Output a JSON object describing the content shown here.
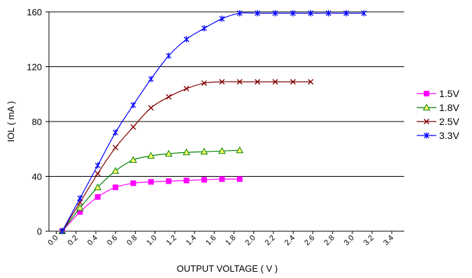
{
  "chart_data": {
    "type": "line",
    "title": "",
    "xlabel": "OUTPUT VOLTAGE ( V )",
    "ylabel": "IOL ( mA )",
    "xlim": [
      0,
      3.6
    ],
    "ylim": [
      0,
      160
    ],
    "x_ticks": [
      "0.0",
      "0.2",
      "0.4",
      "0.6",
      "0.8",
      "1.0",
      "1.2",
      "1.4",
      "1.6",
      "1.8",
      "2.0",
      "2.2",
      "2.4",
      "2.6",
      "2.8",
      "3.0",
      "3.2",
      "3.4"
    ],
    "y_ticks": [
      "0",
      "40",
      "80",
      "120",
      "160"
    ],
    "grid": "horizontal",
    "legend_position": "right",
    "series": [
      {
        "name": "1.5V",
        "color": "#ff00ff",
        "marker": "square",
        "x": [
          0.1,
          0.3,
          0.5,
          0.7,
          0.9,
          1.1,
          1.3,
          1.5,
          1.7,
          1.9,
          2.1
        ],
        "y": [
          0,
          14,
          25,
          32,
          35,
          36,
          36.5,
          37,
          37.5,
          38,
          38
        ]
      },
      {
        "name": "1.8V",
        "color": "#008000",
        "marker": "triangle",
        "x": [
          0.1,
          0.3,
          0.5,
          0.7,
          0.9,
          1.1,
          1.3,
          1.5,
          1.7,
          1.9,
          2.1
        ],
        "y": [
          0,
          17,
          32,
          44,
          52,
          55,
          56.5,
          57.5,
          58,
          58.5,
          59
        ]
      },
      {
        "name": "2.5V",
        "color": "#800000",
        "marker": "x",
        "x": [
          0.1,
          0.3,
          0.5,
          0.7,
          0.9,
          1.1,
          1.3,
          1.5,
          1.7,
          1.9,
          2.1,
          2.3,
          2.5,
          2.7,
          2.9
        ],
        "y": [
          0,
          21,
          42,
          61,
          76,
          90,
          98,
          104,
          108,
          109,
          109,
          109,
          109,
          109,
          109
        ]
      },
      {
        "name": "3.3V",
        "color": "#0000ff",
        "marker": "star",
        "x": [
          0.1,
          0.3,
          0.5,
          0.7,
          0.9,
          1.1,
          1.3,
          1.5,
          1.7,
          1.9,
          2.1,
          2.3,
          2.5,
          2.7,
          2.9,
          3.1,
          3.3,
          3.5
        ],
        "y": [
          0,
          24,
          48,
          72,
          92,
          111,
          128,
          140,
          148,
          155,
          159,
          159,
          159,
          159,
          159,
          159,
          159,
          159
        ]
      }
    ]
  }
}
